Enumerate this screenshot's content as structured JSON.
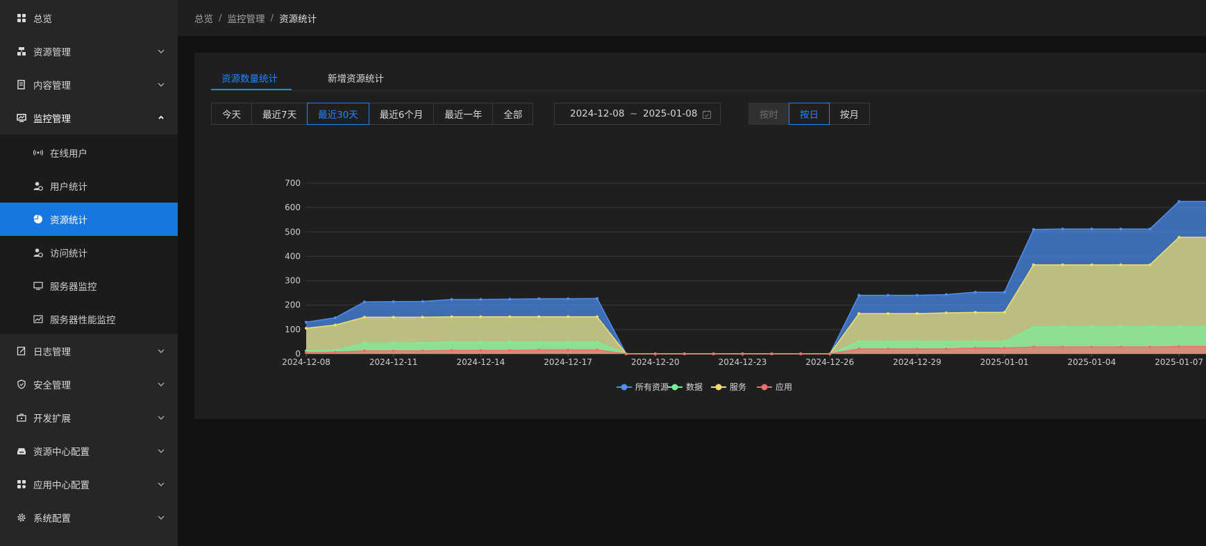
{
  "sidebar": {
    "items": [
      {
        "label": "总览",
        "icon": "dashboard-icon",
        "expandable": false
      },
      {
        "label": "资源管理",
        "icon": "resource-icon",
        "expandable": true
      },
      {
        "label": "内容管理",
        "icon": "content-icon",
        "expandable": true
      },
      {
        "label": "监控管理",
        "icon": "monitor-icon",
        "expandable": true,
        "open": true
      },
      {
        "label": "日志管理",
        "icon": "log-icon",
        "expandable": true
      },
      {
        "label": "安全管理",
        "icon": "shield-icon",
        "expandable": true
      },
      {
        "label": "开发扩展",
        "icon": "toolbox-icon",
        "expandable": true
      },
      {
        "label": "资源中心配置",
        "icon": "resource-center-icon",
        "expandable": true
      },
      {
        "label": "应用中心配置",
        "icon": "app-center-icon",
        "expandable": true
      },
      {
        "label": "系统配置",
        "icon": "gear-icon",
        "expandable": true
      }
    ],
    "monitor_submenu": [
      {
        "label": "在线用户",
        "icon": "online-icon"
      },
      {
        "label": "用户统计",
        "icon": "user-stat-icon"
      },
      {
        "label": "资源统计",
        "icon": "pie-icon",
        "active": true
      },
      {
        "label": "访问统计",
        "icon": "visit-stat-icon"
      },
      {
        "label": "服务器监控",
        "icon": "server-icon"
      },
      {
        "label": "服务器性能监控",
        "icon": "performance-icon"
      }
    ]
  },
  "breadcrumb": [
    "总览",
    "监控管理",
    "资源统计"
  ],
  "tabs": [
    {
      "label": "资源数量统计",
      "active": true
    },
    {
      "label": "新增资源统计",
      "active": false
    }
  ],
  "range_buttons": [
    {
      "label": "今天"
    },
    {
      "label": "最近7天"
    },
    {
      "label": "最近30天",
      "selected": true
    },
    {
      "label": "最近6个月"
    },
    {
      "label": "最近一年"
    },
    {
      "label": "全部"
    }
  ],
  "date_range": {
    "start": "2024-12-08",
    "separator": "~",
    "end": "2025-01-08"
  },
  "granularity_buttons": [
    {
      "label": "按时",
      "disabled": true
    },
    {
      "label": "按日",
      "selected": true
    },
    {
      "label": "按月"
    }
  ],
  "colors": {
    "accent": "#1f86ff",
    "sidebar_active": "#1677e0",
    "all_resources": "#4d8ff3",
    "data": "#7aee98",
    "service": "#f2df6b",
    "app": "#f36c6c"
  },
  "chart_data": {
    "type": "area",
    "stacked": false,
    "x": [
      "2024-12-08",
      "2024-12-09",
      "2024-12-10",
      "2024-12-11",
      "2024-12-12",
      "2024-12-13",
      "2024-12-14",
      "2024-12-15",
      "2024-12-16",
      "2024-12-17",
      "2024-12-18",
      "2024-12-19",
      "2024-12-20",
      "2024-12-21",
      "2024-12-22",
      "2024-12-23",
      "2024-12-24",
      "2024-12-25",
      "2024-12-26",
      "2024-12-27",
      "2024-12-28",
      "2024-12-29",
      "2024-12-30",
      "2024-12-31",
      "2025-01-01",
      "2025-01-02",
      "2025-01-03",
      "2025-01-04",
      "2025-01-05",
      "2025-01-06",
      "2025-01-07",
      "2025-01-08"
    ],
    "x_tick_labels": [
      "2024-12-08",
      "2024-12-11",
      "2024-12-14",
      "2024-12-17",
      "2024-12-20",
      "2024-12-23",
      "2024-12-26",
      "2024-12-29",
      "2025-01-01",
      "2025-01-04",
      "2025-01-07"
    ],
    "y_ticks": [
      0,
      100,
      200,
      300,
      400,
      500,
      600,
      700
    ],
    "ylim": [
      0,
      700
    ],
    "grid": true,
    "legend_position": "bottom",
    "series": [
      {
        "name": "所有资源",
        "color": "#4d8ff3",
        "values": [
          130,
          148,
          213,
          214,
          215,
          223,
          223,
          224,
          226,
          226,
          227,
          0,
          0,
          0,
          0,
          0,
          0,
          0,
          0,
          240,
          240,
          240,
          243,
          253,
          253,
          510,
          512,
          512,
          512,
          512,
          625,
          625
        ]
      },
      {
        "name": "服务",
        "color": "#f2df6b",
        "values": [
          105,
          118,
          150,
          150,
          150,
          152,
          152,
          152,
          152,
          152,
          152,
          0,
          0,
          0,
          0,
          0,
          0,
          0,
          0,
          165,
          165,
          165,
          168,
          170,
          170,
          365,
          365,
          365,
          365,
          365,
          478,
          478
        ]
      },
      {
        "name": "数据",
        "color": "#7aee98",
        "values": [
          12,
          15,
          44,
          44,
          45,
          48,
          48,
          48,
          48,
          48,
          48,
          0,
          0,
          0,
          0,
          0,
          0,
          0,
          0,
          50,
          50,
          50,
          50,
          50,
          50,
          110,
          112,
          112,
          112,
          112,
          112,
          112
        ]
      },
      {
        "name": "应用",
        "color": "#f36c6c",
        "values": [
          5,
          7,
          12,
          12,
          12,
          14,
          14,
          14,
          16,
          16,
          16,
          0,
          0,
          0,
          0,
          0,
          0,
          0,
          0,
          20,
          20,
          20,
          20,
          24,
          24,
          28,
          28,
          28,
          28,
          28,
          30,
          30
        ]
      }
    ],
    "legend_order": [
      "所有资源",
      "数据",
      "服务",
      "应用"
    ]
  }
}
